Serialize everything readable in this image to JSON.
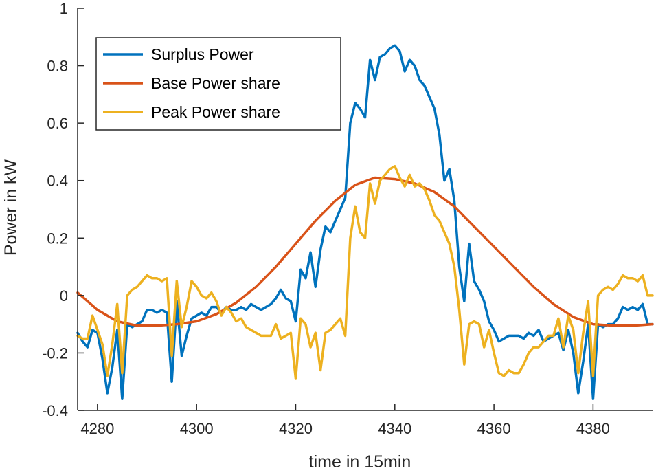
{
  "chart_data": {
    "type": "line",
    "title": "",
    "xlabel": "time in 15min",
    "ylabel": "Power in kW",
    "xlim": [
      4276,
      4392
    ],
    "ylim": [
      -0.4,
      1
    ],
    "xticks": [
      4280,
      4300,
      4320,
      4340,
      4360,
      4380
    ],
    "yticks": [
      -0.4,
      -0.2,
      0,
      0.2,
      0.4,
      0.6,
      0.8,
      1
    ],
    "ytick_labels": [
      "-0.4",
      "-0.2",
      "0",
      "0.2",
      "0.4",
      "0.6",
      "0.8",
      "1"
    ],
    "grid": false,
    "legend_position": "top-left",
    "series": [
      {
        "name": "Surplus Power",
        "color": "#0072BD",
        "x": [
          4276,
          4277,
          4278,
          4279,
          4280,
          4281,
          4282,
          4283,
          4284,
          4285,
          4286,
          4287,
          4288,
          4289,
          4290,
          4291,
          4292,
          4293,
          4294,
          4295,
          4296,
          4297,
          4298,
          4299,
          4300,
          4301,
          4302,
          4303,
          4304,
          4305,
          4306,
          4307,
          4308,
          4309,
          4310,
          4311,
          4312,
          4313,
          4314,
          4315,
          4316,
          4317,
          4318,
          4319,
          4320,
          4321,
          4322,
          4323,
          4324,
          4325,
          4326,
          4327,
          4328,
          4329,
          4330,
          4331,
          4332,
          4333,
          4334,
          4335,
          4336,
          4337,
          4338,
          4339,
          4340,
          4341,
          4342,
          4343,
          4344,
          4345,
          4346,
          4347,
          4348,
          4349,
          4350,
          4351,
          4352,
          4353,
          4354,
          4355,
          4356,
          4357,
          4358,
          4359,
          4360,
          4361,
          4362,
          4363,
          4364,
          4365,
          4366,
          4367,
          4368,
          4369,
          4370,
          4371,
          4372,
          4373,
          4374,
          4375,
          4376,
          4377,
          4378,
          4379,
          4380,
          4381,
          4382,
          4383,
          4384,
          4385,
          4386,
          4387,
          4388,
          4389,
          4390,
          4391,
          4392
        ],
        "y": [
          -0.13,
          -0.16,
          -0.18,
          -0.12,
          -0.13,
          -0.22,
          -0.34,
          -0.25,
          -0.12,
          -0.36,
          -0.1,
          -0.11,
          -0.1,
          -0.09,
          -0.05,
          -0.05,
          -0.06,
          -0.05,
          -0.06,
          -0.3,
          -0.02,
          -0.21,
          -0.14,
          -0.08,
          -0.07,
          -0.06,
          -0.07,
          -0.04,
          -0.04,
          -0.06,
          -0.04,
          -0.05,
          -0.05,
          -0.04,
          -0.05,
          -0.03,
          -0.04,
          -0.05,
          -0.04,
          -0.03,
          -0.01,
          0.02,
          -0.01,
          -0.02,
          -0.09,
          0.09,
          0.06,
          0.15,
          0.03,
          0.16,
          0.24,
          0.22,
          0.26,
          0.3,
          0.34,
          0.6,
          0.67,
          0.65,
          0.62,
          0.82,
          0.75,
          0.83,
          0.84,
          0.86,
          0.87,
          0.85,
          0.78,
          0.82,
          0.8,
          0.75,
          0.73,
          0.69,
          0.65,
          0.56,
          0.4,
          0.44,
          0.33,
          0.1,
          -0.02,
          0.18,
          0.05,
          0.02,
          -0.02,
          -0.09,
          -0.12,
          -0.16,
          -0.15,
          -0.14,
          -0.14,
          -0.14,
          -0.15,
          -0.13,
          -0.14,
          -0.12,
          -0.16,
          -0.15,
          -0.14,
          -0.13,
          -0.19,
          -0.12,
          -0.2,
          -0.34,
          -0.23,
          -0.1,
          -0.36,
          -0.1,
          -0.11,
          -0.1,
          -0.1,
          -0.08,
          -0.04,
          -0.05,
          -0.04,
          -0.05,
          -0.03,
          -0.1,
          -0.1
        ]
      },
      {
        "name": "Base Power share",
        "color": "#D95319",
        "x": [
          4276,
          4280,
          4284,
          4288,
          4292,
          4296,
          4300,
          4304,
          4308,
          4312,
          4316,
          4320,
          4324,
          4328,
          4332,
          4336,
          4340,
          4344,
          4348,
          4352,
          4356,
          4360,
          4364,
          4368,
          4372,
          4376,
          4380,
          4384,
          4388,
          4392
        ],
        "y": [
          0.01,
          -0.05,
          -0.09,
          -0.105,
          -0.105,
          -0.1,
          -0.09,
          -0.065,
          -0.025,
          0.03,
          0.1,
          0.18,
          0.26,
          0.33,
          0.385,
          0.41,
          0.405,
          0.39,
          0.36,
          0.31,
          0.24,
          0.17,
          0.1,
          0.03,
          -0.03,
          -0.075,
          -0.1,
          -0.105,
          -0.105,
          -0.1
        ]
      },
      {
        "name": "Peak Power share",
        "color": "#EDB120",
        "x": [
          4276,
          4277,
          4278,
          4279,
          4280,
          4281,
          4282,
          4283,
          4284,
          4285,
          4286,
          4287,
          4288,
          4289,
          4290,
          4291,
          4292,
          4293,
          4294,
          4295,
          4296,
          4297,
          4298,
          4299,
          4300,
          4301,
          4302,
          4303,
          4304,
          4305,
          4306,
          4307,
          4308,
          4309,
          4310,
          4311,
          4312,
          4313,
          4314,
          4315,
          4316,
          4317,
          4318,
          4319,
          4320,
          4321,
          4322,
          4323,
          4324,
          4325,
          4326,
          4327,
          4328,
          4329,
          4330,
          4331,
          4332,
          4333,
          4334,
          4335,
          4336,
          4337,
          4338,
          4339,
          4340,
          4341,
          4342,
          4343,
          4344,
          4345,
          4346,
          4347,
          4348,
          4349,
          4350,
          4351,
          4352,
          4353,
          4354,
          4355,
          4356,
          4357,
          4358,
          4359,
          4360,
          4361,
          4362,
          4363,
          4364,
          4365,
          4366,
          4367,
          4368,
          4369,
          4370,
          4371,
          4372,
          4373,
          4374,
          4375,
          4376,
          4377,
          4378,
          4379,
          4380,
          4381,
          4382,
          4383,
          4384,
          4385,
          4386,
          4387,
          4388,
          4389,
          4390,
          4391,
          4392
        ],
        "y": [
          -0.14,
          -0.15,
          -0.15,
          -0.07,
          -0.12,
          -0.17,
          -0.28,
          -0.17,
          -0.03,
          -0.27,
          0.0,
          0.02,
          0.03,
          0.05,
          0.07,
          0.06,
          0.06,
          0.05,
          0.06,
          -0.21,
          0.05,
          -0.11,
          -0.04,
          0.05,
          0.03,
          0.0,
          -0.01,
          0.01,
          -0.02,
          -0.07,
          -0.04,
          -0.06,
          -0.09,
          -0.08,
          -0.11,
          -0.12,
          -0.13,
          -0.14,
          -0.14,
          -0.14,
          -0.1,
          -0.15,
          -0.14,
          -0.13,
          -0.29,
          -0.08,
          -0.1,
          -0.18,
          -0.13,
          -0.26,
          -0.13,
          -0.12,
          -0.1,
          -0.08,
          -0.14,
          0.2,
          0.31,
          0.22,
          0.2,
          0.39,
          0.32,
          0.4,
          0.42,
          0.44,
          0.45,
          0.41,
          0.38,
          0.42,
          0.38,
          0.39,
          0.37,
          0.33,
          0.28,
          0.26,
          0.22,
          0.18,
          0.1,
          -0.05,
          -0.24,
          -0.1,
          -0.09,
          -0.1,
          -0.18,
          -0.12,
          -0.2,
          -0.27,
          -0.28,
          -0.26,
          -0.27,
          -0.27,
          -0.24,
          -0.2,
          -0.18,
          -0.18,
          -0.16,
          -0.14,
          -0.14,
          -0.08,
          -0.18,
          -0.07,
          -0.12,
          -0.27,
          -0.13,
          -0.02,
          -0.28,
          0.0,
          0.02,
          0.03,
          0.02,
          0.04,
          0.07,
          0.06,
          0.06,
          0.05,
          0.07,
          0.0,
          0.0
        ]
      }
    ]
  }
}
